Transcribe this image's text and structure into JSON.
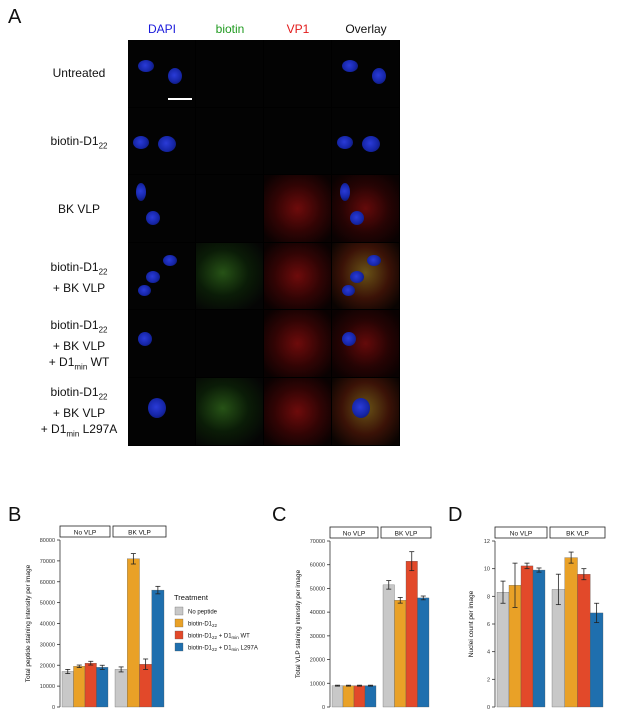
{
  "panel_a": {
    "letter": "A",
    "columns": [
      {
        "label": "DAPI",
        "color": "#1a1adb"
      },
      {
        "label": "biotin",
        "color": "#1f9a1f"
      },
      {
        "label": "VP1",
        "color": "#e21a1a"
      },
      {
        "label": "Overlay",
        "color": "#111111"
      }
    ],
    "rows": [
      {
        "lines": [
          "Untreated"
        ]
      },
      {
        "lines": [
          "biotin-D1",
          "22"
        ]
      },
      {
        "lines": [
          "BK VLP"
        ]
      },
      {
        "lines": [
          "biotin-D1",
          "22",
          "+ BK VLP"
        ]
      },
      {
        "lines": [
          "biotin-D1",
          "22",
          "+ BK VLP",
          "+ D1",
          "min",
          " WT"
        ]
      },
      {
        "lines": [
          "biotin-D1",
          "22",
          "+ BK VLP",
          "+ D1",
          "min",
          " L297A"
        ]
      }
    ]
  },
  "chart_data": [
    {
      "panel": "B",
      "type": "bar",
      "ylabel": "Total peptide staining intensity per image",
      "ylim": [
        0,
        80000
      ],
      "yticks": [
        0,
        10000,
        20000,
        30000,
        40000,
        50000,
        60000,
        70000,
        80000
      ],
      "facets": [
        "No VLP",
        "BK VLP"
      ],
      "series": [
        {
          "name": "No peptide",
          "color": "#c8c8c8",
          "values": [
            17000,
            18000
          ],
          "err": [
            1000,
            1200
          ]
        },
        {
          "name": "biotin-D1₂₂",
          "color": "#e9a127",
          "values": [
            19500,
            71000
          ],
          "err": [
            600,
            2500
          ]
        },
        {
          "name": "biotin-D1₂₂ + D1ₘᵢₙ WT",
          "color": "#e2492a",
          "values": [
            21000,
            20500
          ],
          "err": [
            900,
            2500
          ]
        },
        {
          "name": "biotin-D1₂₂ + D1ₘᵢₙ L297A",
          "color": "#1f6fae",
          "values": [
            19000,
            56000
          ],
          "err": [
            1000,
            1800
          ]
        }
      ]
    },
    {
      "panel": "C",
      "type": "bar",
      "ylabel": "Total VLP staining intensity per image",
      "ylim": [
        0,
        70000
      ],
      "yticks": [
        0,
        10000,
        20000,
        30000,
        40000,
        50000,
        60000,
        70000
      ],
      "facets": [
        "No VLP",
        "BK VLP"
      ],
      "series": [
        {
          "name": "No peptide",
          "color": "#c8c8c8",
          "values": [
            9000,
            51500
          ],
          "err": [
            200,
            1800
          ]
        },
        {
          "name": "biotin-D1₂₂",
          "color": "#e9a127",
          "values": [
            9000,
            45000
          ],
          "err": [
            200,
            1200
          ]
        },
        {
          "name": "biotin-D1₂₂ + D1ₘᵢₙ WT",
          "color": "#e2492a",
          "values": [
            9000,
            61500
          ],
          "err": [
            200,
            4000
          ]
        },
        {
          "name": "biotin-D1₂₂ + D1ₘᵢₙ L297A",
          "color": "#1f6fae",
          "values": [
            9000,
            46000
          ],
          "err": [
            200,
            800
          ]
        }
      ]
    },
    {
      "panel": "D",
      "type": "bar",
      "ylabel": "Nuclei count per image",
      "ylim": [
        0,
        12
      ],
      "yticks": [
        0,
        2,
        4,
        6,
        8,
        10,
        12
      ],
      "facets": [
        "No VLP",
        "BK VLP"
      ],
      "series": [
        {
          "name": "No peptide",
          "color": "#c8c8c8",
          "values": [
            8.3,
            8.5
          ],
          "err": [
            0.8,
            1.1
          ]
        },
        {
          "name": "biotin-D1₂₂",
          "color": "#e9a127",
          "values": [
            8.8,
            10.8
          ],
          "err": [
            1.6,
            0.4
          ]
        },
        {
          "name": "biotin-D1₂₂ + D1ₘᵢₙ WT",
          "color": "#e2492a",
          "values": [
            10.2,
            9.6
          ],
          "err": [
            0.2,
            0.4
          ]
        },
        {
          "name": "biotin-D1₂₂ + D1ₘᵢₙ L297A",
          "color": "#1f6fae",
          "values": [
            9.9,
            6.8
          ],
          "err": [
            0.15,
            0.7
          ]
        }
      ]
    }
  ],
  "legend": {
    "title": "Treatment",
    "entries": [
      {
        "label": "No peptide",
        "color": "#c8c8c8"
      },
      {
        "label": "biotin-D1",
        "sub": "22",
        "tail": "",
        "color": "#e9a127"
      },
      {
        "label": "biotin-D1",
        "sub": "22",
        "tail": " + D1",
        "sub2": "min",
        "tail2": " WT",
        "color": "#e2492a"
      },
      {
        "label": "biotin-D1",
        "sub": "22",
        "tail": " + D1",
        "sub2": "min",
        "tail2": " L297A",
        "color": "#1f6fae"
      }
    ]
  }
}
